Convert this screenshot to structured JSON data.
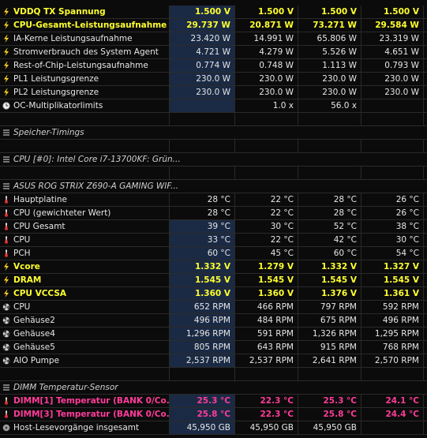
{
  "rows": [
    {
      "name": "VDDQ TX Spannung",
      "values": [
        "1.500 V",
        "1.500 V",
        "1.500 V",
        "1.500 V"
      ],
      "color": "yellow",
      "icon": "bolt"
    },
    {
      "name": "CPU-Gesamt-Leistungsaufnahme",
      "values": [
        "29.737 W",
        "20.871 W",
        "73.271 W",
        "29.584 W"
      ],
      "color": "yellow",
      "icon": "bolt"
    },
    {
      "name": "IA-Kerne Leistungsaufnahme",
      "values": [
        "23.420 W",
        "14.991 W",
        "65.806 W",
        "23.319 W"
      ],
      "icon": "bolt"
    },
    {
      "name": "Stromverbrauch des System Agent",
      "values": [
        "4.721 W",
        "4.279 W",
        "5.526 W",
        "4.651 W"
      ],
      "icon": "bolt"
    },
    {
      "name": "Rest-of-Chip-Leistungsaufnahme",
      "values": [
        "0.774 W",
        "0.748 W",
        "1.113 W",
        "0.793 W"
      ],
      "icon": "bolt"
    },
    {
      "name": "PL1 Leistungsgrenze",
      "values": [
        "230.0 W",
        "230.0 W",
        "230.0 W",
        "230.0 W"
      ],
      "icon": "bolt"
    },
    {
      "name": "PL2 Leistungsgrenze",
      "values": [
        "230.0 W",
        "230.0 W",
        "230.0 W",
        "230.0 W"
      ],
      "icon": "bolt"
    },
    {
      "name": "OC-Multiplikatorlimits",
      "values": [
        null,
        "1.0 x",
        "56.0 x",
        null
      ],
      "icon": "clock"
    },
    {
      "kind": "empty"
    },
    {
      "name": "Speicher-Timings",
      "kind": "section"
    },
    {
      "kind": "empty"
    },
    {
      "name": "CPU [#0]: Intel Core i7-13700KF: Grün...",
      "kind": "section"
    },
    {
      "kind": "empty"
    },
    {
      "name": "ASUS ROG STRIX Z690-A GAMING WIF...",
      "kind": "section"
    },
    {
      "name": "Hauptplatine",
      "values": [
        "28 °C",
        "22 °C",
        "28 °C",
        "26 °C"
      ],
      "icon": "therm"
    },
    {
      "name": "CPU (gewichteter Wert)",
      "values": [
        "28 °C",
        "22 °C",
        "28 °C",
        "26 °C"
      ],
      "icon": "therm"
    },
    {
      "name": "CPU Gesamt",
      "values": [
        "39 °C",
        "30 °C",
        "52 °C",
        "38 °C"
      ],
      "icon": "therm"
    },
    {
      "name": "CPU",
      "values": [
        "33 °C",
        "22 °C",
        "42 °C",
        "30 °C"
      ],
      "icon": "therm"
    },
    {
      "name": "PCH",
      "values": [
        "60 °C",
        "45 °C",
        "60 °C",
        "54 °C"
      ],
      "icon": "therm"
    },
    {
      "name": "Vcore",
      "values": [
        "1.332 V",
        "1.279 V",
        "1.332 V",
        "1.327 V"
      ],
      "color": "yellow",
      "icon": "bolt"
    },
    {
      "name": "DRAM",
      "values": [
        "1.545 V",
        "1.545 V",
        "1.545 V",
        "1.545 V"
      ],
      "color": "yellow",
      "icon": "bolt"
    },
    {
      "name": "CPU VCCSA",
      "values": [
        "1.360 V",
        "1.360 V",
        "1.376 V",
        "1.361 V"
      ],
      "color": "yellow",
      "icon": "bolt"
    },
    {
      "name": "CPU",
      "values": [
        "652 RPM",
        "466 RPM",
        "797 RPM",
        "592 RPM"
      ],
      "icon": "fan"
    },
    {
      "name": "Gehäuse2",
      "values": [
        "496 RPM",
        "484 RPM",
        "675 RPM",
        "496 RPM"
      ],
      "icon": "fan"
    },
    {
      "name": "Gehäuse4",
      "values": [
        "1,296 RPM",
        "591 RPM",
        "1,326 RPM",
        "1,295 RPM"
      ],
      "icon": "fan"
    },
    {
      "name": "Gehäuse5",
      "values": [
        "805 RPM",
        "643 RPM",
        "915 RPM",
        "768 RPM"
      ],
      "icon": "fan"
    },
    {
      "name": "AIO Pumpe",
      "values": [
        "2,537 RPM",
        "2,537 RPM",
        "2,641 RPM",
        "2,570 RPM"
      ],
      "icon": "fan"
    },
    {
      "kind": "empty"
    },
    {
      "name": "DIMM Temperatur-Sensor",
      "kind": "section"
    },
    {
      "name": "DIMM[1] Temperatur (BANK 0/Co...",
      "values": [
        "25.3 °C",
        "22.3 °C",
        "25.3 °C",
        "24.1 °C"
      ],
      "color": "pink",
      "icon": "therm"
    },
    {
      "name": "DIMM[3] Temperatur (BANK 0/Co...",
      "values": [
        "25.8 °C",
        "22.3 °C",
        "25.8 °C",
        "24.4 °C"
      ],
      "color": "pink",
      "icon": "therm"
    },
    {
      "name": "Host-Lesevorgänge insgesamt",
      "values": [
        "45,950 GB",
        "45,950 GB",
        "45,950 GB",
        null
      ],
      "icon": "disk"
    }
  ]
}
